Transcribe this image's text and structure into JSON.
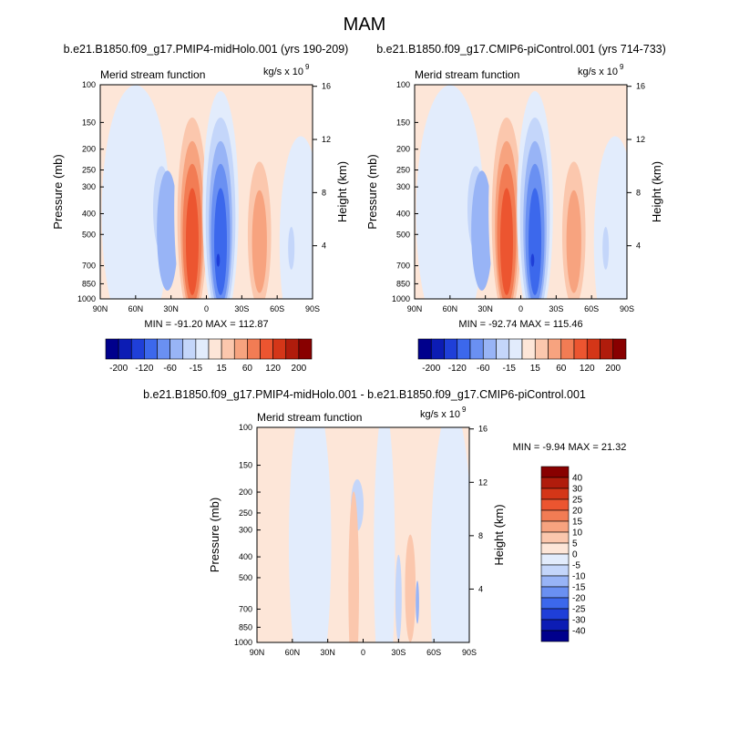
{
  "title": "MAM",
  "colors": {
    "main_bar": [
      "#00008c",
      "#0c1cb4",
      "#1f3fd8",
      "#3c68ec",
      "#6a90f2",
      "#98b4f6",
      "#c4d6fa",
      "#e2ecfc",
      "#fde6d8",
      "#fbc7ad",
      "#f7a37f",
      "#f27c54",
      "#ec5530",
      "#d43618",
      "#b01c0c",
      "#880000"
    ],
    "diff_bar": [
      "#00008c",
      "#0c1cb4",
      "#1f3fd8",
      "#3c68ec",
      "#6a90f2",
      "#98b4f6",
      "#c4d6fa",
      "#e2ecfc",
      "#fde6d8",
      "#fbc7ad",
      "#f7a37f",
      "#f27c54",
      "#ec5530",
      "#d43618",
      "#b01c0c",
      "#880000"
    ]
  },
  "chart_data": [
    {
      "type": "heatmap",
      "title": "b.e21.B1850.f09_g17.PMIP4-midHolo.001 (yrs 190-209)",
      "left_label": "Merid stream function",
      "units_label": "kg/s x 10",
      "units_exp": "9",
      "ylabel": "Pressure (mb)",
      "ylabel_right": "Height (km)",
      "x_ticks": [
        "90N",
        "60N",
        "30N",
        "0",
        "30S",
        "60S",
        "90S"
      ],
      "y_ticks": [
        "100",
        "150",
        "200",
        "250",
        "300",
        "400",
        "500",
        "700",
        "850",
        "1000"
      ],
      "y_right_ticks": [
        "16",
        "12",
        "8",
        "4"
      ],
      "stats": "MIN = -91.20   MAX = 112.87",
      "colorbar_labels": [
        "-200",
        "-120",
        "-60",
        "-15",
        "15",
        "60",
        "120",
        "200"
      ],
      "cells": [
        {
          "lat": 27,
          "p": 430,
          "value": 10
        },
        {
          "lat": 12,
          "p": 450,
          "value": 60
        },
        {
          "lat": 12,
          "p": 470,
          "value": 100
        },
        {
          "lat": 12,
          "p": 550,
          "value": 112.87
        },
        {
          "lat": -12,
          "p": 480,
          "value": -60
        },
        {
          "lat": -12,
          "p": 540,
          "value": -91.2
        },
        {
          "lat": -45,
          "p": 520,
          "value": 40
        },
        {
          "lat": 38,
          "p": 380,
          "value": -20
        }
      ]
    },
    {
      "type": "heatmap",
      "title": "b.e21.B1850.f09_g17.CMIP6-piControl.001 (yrs 714-733)",
      "left_label": "Merid stream function",
      "units_label": "kg/s x 10",
      "units_exp": "9",
      "ylabel": "Pressure (mb)",
      "ylabel_right": "Height (km)",
      "x_ticks": [
        "90N",
        "60N",
        "30N",
        "0",
        "30S",
        "60S",
        "90S"
      ],
      "y_ticks": [
        "100",
        "150",
        "200",
        "250",
        "300",
        "400",
        "500",
        "700",
        "850",
        "1000"
      ],
      "y_right_ticks": [
        "16",
        "12",
        "8",
        "4"
      ],
      "stats": "MIN = -92.74   MAX = 115.46",
      "colorbar_labels": [
        "-200",
        "-120",
        "-60",
        "-15",
        "15",
        "60",
        "120",
        "200"
      ],
      "cells": [
        {
          "lat": 12,
          "p": 550,
          "value": 115.46
        },
        {
          "lat": -12,
          "p": 540,
          "value": -92.74
        },
        {
          "lat": -45,
          "p": 520,
          "value": 40
        }
      ]
    },
    {
      "type": "heatmap",
      "title": "b.e21.B1850.f09_g17.PMIP4-midHolo.001 - b.e21.B1850.f09_g17.CMIP6-piControl.001",
      "left_label": "Merid stream function",
      "units_label": "kg/s x 10",
      "units_exp": "9",
      "ylabel": "Pressure (mb)",
      "ylabel_right": "Height (km)",
      "x_ticks": [
        "90N",
        "60N",
        "30N",
        "0",
        "30S",
        "60S",
        "90S"
      ],
      "y_ticks": [
        "100",
        "150",
        "200",
        "250",
        "300",
        "400",
        "500",
        "700",
        "850",
        "1000"
      ],
      "y_right_ticks": [
        "16",
        "12",
        "8",
        "4"
      ],
      "stats": "MIN =  -9.94   MAX =  21.32",
      "colorbar_labels": [
        "40",
        "30",
        "25",
        "20",
        "15",
        "10",
        "5",
        "0",
        "-5",
        "-10",
        "-15",
        "-20",
        "-25",
        "-30",
        "-40"
      ],
      "cells": [
        {
          "lat": 7,
          "p": 550,
          "value": 7
        },
        {
          "lat": 5,
          "p": 220,
          "value": -8
        },
        {
          "lat": -40,
          "p": 600,
          "value": 5
        }
      ]
    }
  ]
}
